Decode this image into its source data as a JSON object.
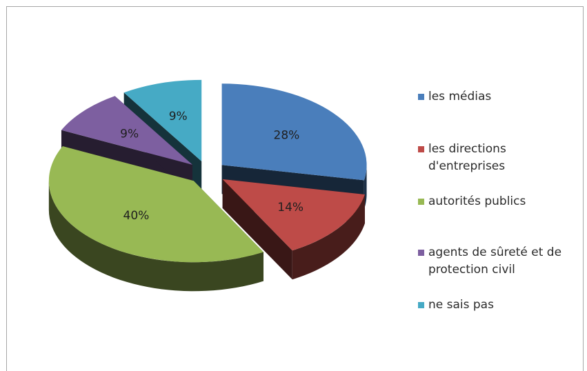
{
  "chart_data": {
    "type": "pie",
    "three_d": true,
    "exploded": true,
    "legend_position": "right",
    "slices": [
      {
        "label": "les médias",
        "value": 28,
        "value_label": "28%",
        "color": "#4a7ebb"
      },
      {
        "label": "les directions d'entreprises",
        "value": 14,
        "value_label": "14%",
        "color": "#be4b48"
      },
      {
        "label": "autorités publics",
        "value": 40,
        "value_label": "40%",
        "color": "#98b954"
      },
      {
        "label": "agents de sûreté et de protection civil",
        "value": 9,
        "value_label": "9%",
        "color": "#7d5fa0"
      },
      {
        "label": "ne sais pas",
        "value": 9,
        "value_label": "9%",
        "color": "#46aac5"
      }
    ]
  }
}
